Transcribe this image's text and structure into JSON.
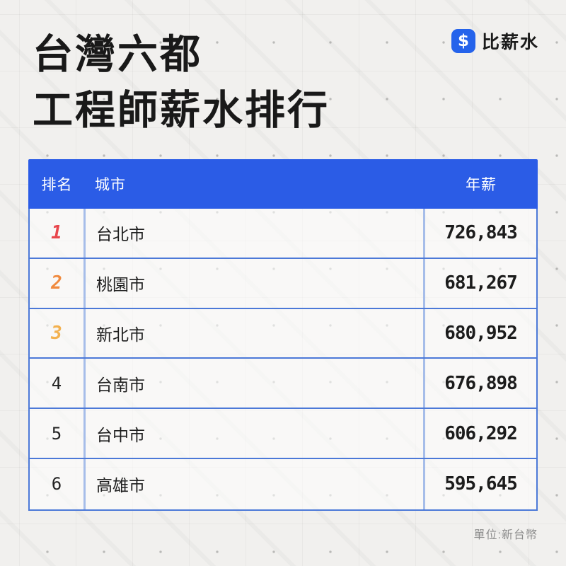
{
  "page": {
    "title_line1": "台灣六都",
    "title_line2": "工程師薪水排行",
    "footer_note": "單位:新台幣"
  },
  "logo": {
    "brand": "比薪水",
    "icon_glyph": "$",
    "icon_bg": "#2563EB"
  },
  "table": {
    "header_bg": "#2B5CE6",
    "border_dark": "#4C79D8",
    "border_light": "#A6BDE9",
    "columns": {
      "rank": "排名",
      "city": "城市",
      "salary": "年薪"
    },
    "rank_colors": {
      "1": "#E8464C",
      "2": "#F08A3E",
      "3": "#F3B14F",
      "other": "#222222"
    },
    "rows": [
      {
        "rank": "1",
        "city": "台北市",
        "salary": "726,843"
      },
      {
        "rank": "2",
        "city": "桃園市",
        "salary": "681,267"
      },
      {
        "rank": "3",
        "city": "新北市",
        "salary": "680,952"
      },
      {
        "rank": "4",
        "city": "台南市",
        "salary": "676,898"
      },
      {
        "rank": "5",
        "city": "台中市",
        "salary": "606,292"
      },
      {
        "rank": "6",
        "city": "高雄市",
        "salary": "595,645"
      }
    ]
  },
  "chart_data": {
    "type": "table",
    "title": "台灣六都 工程師薪水排行",
    "columns": [
      "排名",
      "城市",
      "年薪"
    ],
    "rows": [
      [
        1,
        "台北市",
        726843
      ],
      [
        2,
        "桃園市",
        681267
      ],
      [
        3,
        "新北市",
        680952
      ],
      [
        4,
        "台南市",
        676898
      ],
      [
        5,
        "台中市",
        606292
      ],
      [
        6,
        "高雄市",
        595645
      ]
    ],
    "unit": "新台幣"
  }
}
